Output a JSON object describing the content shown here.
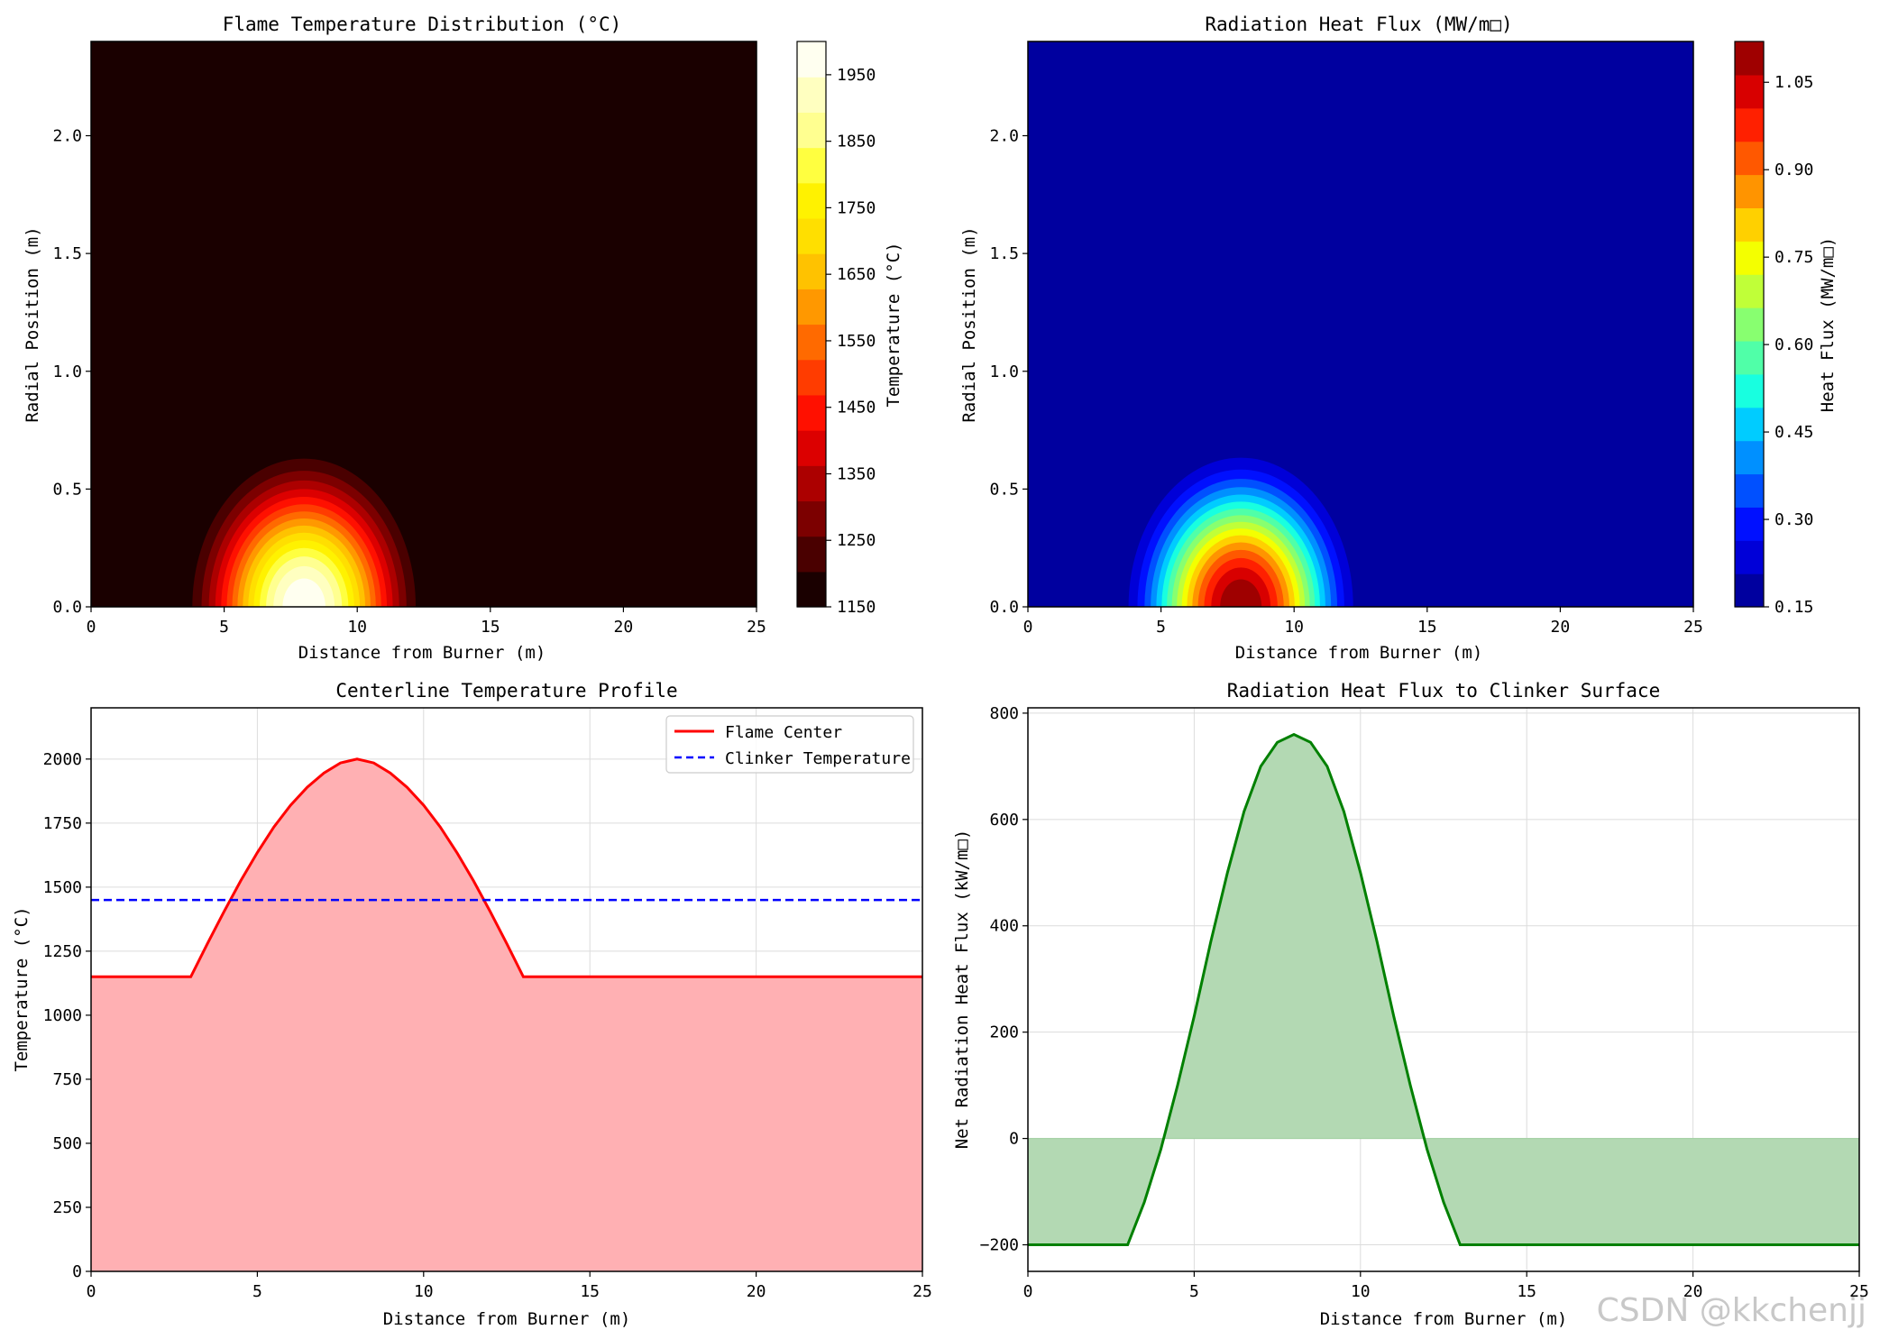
{
  "watermark": "CSDN @kkchenjj",
  "chart_data": [
    {
      "type": "heatmap",
      "title": "Flame Temperature Distribution (°C)",
      "xlabel": "Distance from Burner (m)",
      "ylabel": "Radial Position (m)",
      "xlim": [
        0,
        25
      ],
      "ylim": [
        0,
        2.4
      ],
      "xticks": [
        "0",
        "5",
        "10",
        "15",
        "20",
        "25"
      ],
      "yticks": [
        "0.0",
        "0.5",
        "1.0",
        "1.5",
        "2.0"
      ],
      "colorbar": {
        "label": "Temperature (°C)",
        "colormap": "hot",
        "range": [
          1150,
          2000
        ],
        "ticks": [
          "1150",
          "1250",
          "1350",
          "1450",
          "1550",
          "1650",
          "1750",
          "1850",
          "1950"
        ]
      },
      "field": {
        "base": 1150,
        "peak": 2000,
        "center_x": 8,
        "x_half_width": 5,
        "r_half_width": 0.75,
        "shape": "cos-bump along x, cos-bump along r"
      },
      "colors": [
        "#1a0000",
        "#4a0000",
        "#7c0000",
        "#ac0000",
        "#dc0000",
        "#ff1000",
        "#ff3c00",
        "#ff6a00",
        "#ff9800",
        "#ffc200",
        "#ffdf00",
        "#fff200",
        "#ffff40",
        "#ffff90",
        "#ffffc0",
        "#fffff0"
      ]
    },
    {
      "type": "heatmap",
      "title": "Radiation Heat Flux (MW/m²)",
      "title_display": "Radiation Heat Flux (MW/m□)",
      "xlabel": "Distance from Burner (m)",
      "ylabel": "Radial Position (m)",
      "xlim": [
        0,
        25
      ],
      "ylim": [
        0,
        2.4
      ],
      "xticks": [
        "0",
        "5",
        "10",
        "15",
        "20",
        "25"
      ],
      "yticks": [
        "0.0",
        "0.5",
        "1.0",
        "1.5",
        "2.0"
      ],
      "colorbar": {
        "label": "Heat Flux (MW/m□)",
        "colormap": "jet",
        "range": [
          0.15,
          1.12
        ],
        "ticks": [
          "0.15",
          "0.30",
          "0.45",
          "0.60",
          "0.75",
          "0.90",
          "1.05"
        ]
      },
      "field": {
        "base": 0.15,
        "peak": 1.12,
        "center_x": 8,
        "x_half_width": 5,
        "r_half_width": 0.75
      },
      "colors": [
        "#00009f",
        "#0000d8",
        "#0010ff",
        "#0050ff",
        "#0090ff",
        "#00ccff",
        "#18ffe0",
        "#50ffa8",
        "#88ff70",
        "#c0ff38",
        "#f4ff00",
        "#ffd000",
        "#ff9400",
        "#ff5800",
        "#ff2000",
        "#d80000",
        "#9f0000"
      ]
    },
    {
      "type": "line",
      "title": "Centerline Temperature Profile",
      "xlabel": "Distance from Burner (m)",
      "ylabel": "Temperature (°C)",
      "xlim": [
        0,
        25
      ],
      "ylim": [
        0,
        2200
      ],
      "xticks": [
        "0",
        "5",
        "10",
        "15",
        "20",
        "25"
      ],
      "yticks": [
        "0",
        "250",
        "500",
        "750",
        "1000",
        "1250",
        "1500",
        "1750",
        "2000"
      ],
      "grid": true,
      "legend_position": "top-right",
      "x": [
        0,
        1,
        2,
        3,
        3.5,
        4,
        4.5,
        5,
        5.5,
        6,
        6.5,
        7,
        7.5,
        8,
        8.5,
        9,
        9.5,
        10,
        10.5,
        11,
        11.5,
        12,
        12.5,
        13,
        14,
        16,
        18,
        20,
        22,
        24,
        25
      ],
      "series": [
        {
          "name": "Flame Center",
          "color": "#ff0000",
          "style": "solid",
          "fill": "#ffb0b3",
          "values": [
            1150,
            1150,
            1150,
            1150,
            1280,
            1405,
            1525,
            1635,
            1735,
            1820,
            1890,
            1945,
            1985,
            2000,
            1985,
            1945,
            1890,
            1820,
            1735,
            1635,
            1525,
            1405,
            1280,
            1150,
            1150,
            1150,
            1150,
            1150,
            1150,
            1150,
            1150
          ]
        },
        {
          "name": "Clinker Temperature",
          "color": "#0000ff",
          "style": "dashed",
          "values": [
            1450,
            1450,
            1450,
            1450,
            1450,
            1450,
            1450,
            1450,
            1450,
            1450,
            1450,
            1450,
            1450,
            1450,
            1450,
            1450,
            1450,
            1450,
            1450,
            1450,
            1450,
            1450,
            1450,
            1450,
            1450,
            1450,
            1450,
            1450,
            1450,
            1450,
            1450
          ]
        }
      ]
    },
    {
      "type": "area",
      "title": "Radiation Heat Flux to Clinker Surface",
      "xlabel": "Distance from Burner (m)",
      "ylabel": "Net Radiation Heat Flux (kW/m□)",
      "xlim": [
        0,
        25
      ],
      "ylim": [
        -250,
        810
      ],
      "xticks": [
        "0",
        "5",
        "10",
        "15",
        "20",
        "25"
      ],
      "yticks": [
        "−200",
        "0",
        "200",
        "400",
        "600",
        "800"
      ],
      "grid": true,
      "x": [
        0,
        1,
        2,
        3,
        3.5,
        4,
        4.5,
        5,
        5.5,
        6,
        6.5,
        7,
        7.5,
        8,
        8.5,
        9,
        9.5,
        10,
        10.5,
        11,
        11.5,
        12,
        12.5,
        13,
        14,
        16,
        18,
        20,
        22,
        24,
        25
      ],
      "series": [
        {
          "color": "#008000",
          "fill": "#b3d9b3",
          "values": [
            -200,
            -200,
            -200,
            -200,
            -120,
            -20,
            100,
            230,
            370,
            500,
            615,
            700,
            745,
            760,
            745,
            700,
            615,
            500,
            370,
            230,
            100,
            -20,
            -120,
            -200,
            -200,
            -200,
            -200,
            -200,
            -200,
            -200,
            -200
          ]
        }
      ]
    }
  ]
}
